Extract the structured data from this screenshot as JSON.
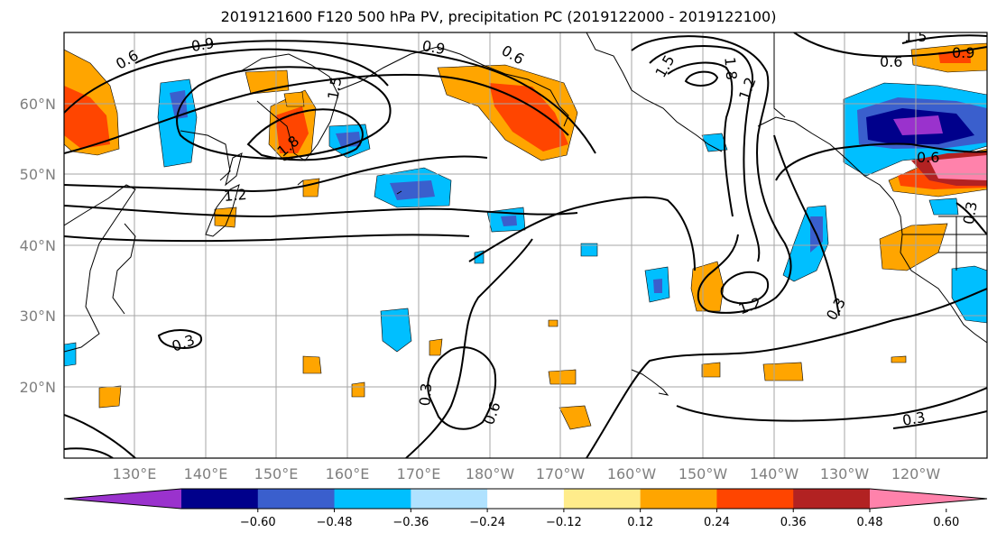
{
  "title": "2019121600 F120 500 hPa PV, precipitation PC (2019122000 - 2019122100)",
  "map": {
    "lon_ticks": [
      "130°E",
      "140°E",
      "150°E",
      "160°E",
      "170°E",
      "180°W",
      "170°W",
      "160°W",
      "150°W",
      "140°W",
      "130°W",
      "120°W"
    ],
    "lat_ticks": [
      "60°N",
      "50°N",
      "40°N",
      "30°N",
      "20°N"
    ],
    "pv_contour_labels": [
      "0.6",
      "0.9",
      "1.5",
      "1.8",
      "1.2",
      "0.9",
      "0.6",
      "1.5",
      "1.8",
      "1.2",
      "1.5",
      "0.6",
      "0.9",
      "0.6",
      "0.3",
      "1.2",
      "0.3",
      "0.3",
      "0.3",
      "0.6",
      "0.3"
    ],
    "colors": {
      "coast": "#000000",
      "grid": "#a6a6a6",
      "contour": "#000000"
    }
  },
  "colorbar": {
    "tick_labels": [
      "−0.60",
      "−0.48",
      "−0.36",
      "−0.24",
      "−0.12",
      "0.12",
      "0.24",
      "0.36",
      "0.48",
      "0.60"
    ],
    "colors": [
      "#9a32cd",
      "#00008b",
      "#3a5fcd",
      "#00bfff",
      "#b0e2ff",
      "#ffffff",
      "#ffec8b",
      "#ffa500",
      "#ff4500",
      "#b22222",
      "#ff82ab"
    ]
  }
}
